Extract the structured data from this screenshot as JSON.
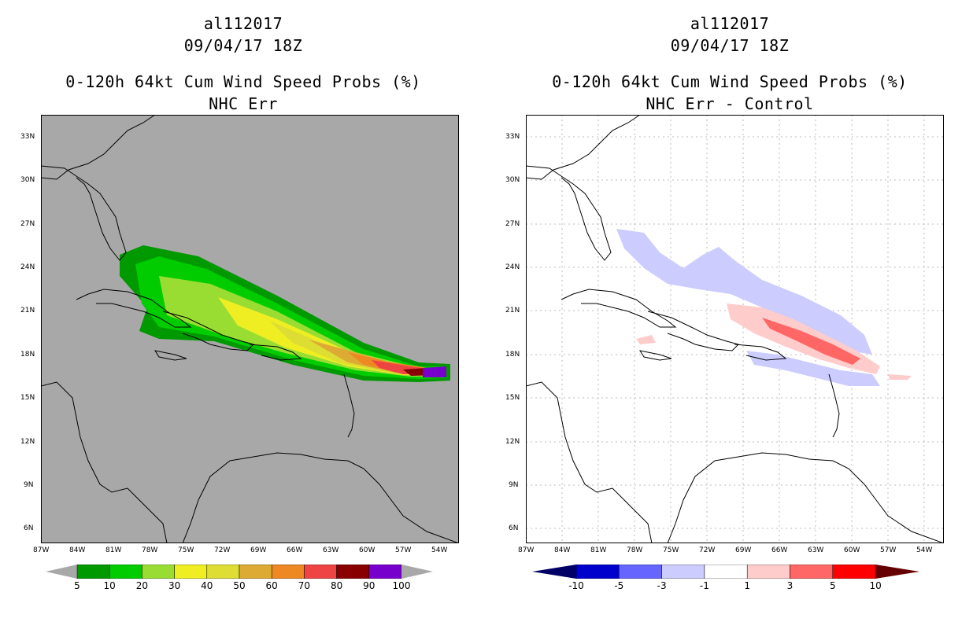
{
  "panels": [
    {
      "id": "left",
      "title_storm": "al112017",
      "title_date": "09/04/17 18Z",
      "title_product": "0-120h 64kt Cum Wind Speed Probs (%)",
      "title_sub": "NHC Err",
      "colorbar_labels": [
        "5",
        "10",
        "20",
        "30",
        "40",
        "50",
        "60",
        "70",
        "80",
        "90",
        "100"
      ],
      "colorbar_colors": [
        "#009900",
        "#00cc00",
        "#99dd33",
        "#eeee22",
        "#dddd33",
        "#ddaa33",
        "#ee8822",
        "#ee4444",
        "#880000",
        "#7700cc"
      ]
    },
    {
      "id": "right",
      "title_storm": "al112017",
      "title_date": "09/04/17 18Z",
      "title_product": "0-120h 64kt Cum Wind Speed Probs (%)",
      "title_sub": "NHC Err - Control",
      "colorbar_labels": [
        "-10",
        "-5",
        "-3",
        "-1",
        "1",
        "3",
        "5",
        "10"
      ],
      "colorbar_colors": [
        "#0000cc",
        "#6666ff",
        "#ccccff",
        "#ffffff",
        "#ffcccc",
        "#ff6666",
        "#ff0000"
      ]
    }
  ],
  "lat_labels": [
    "33N",
    "30N",
    "27N",
    "24N",
    "21N",
    "18N",
    "15N",
    "12N",
    "9N",
    "6N"
  ],
  "lon_labels": [
    "87W",
    "84W",
    "81W",
    "78W",
    "75W",
    "72W",
    "69W",
    "66W",
    "63W",
    "60W",
    "57W",
    "54W"
  ],
  "colors": {
    "map_gray": "#a8a8a8",
    "coast": "#000000",
    "grid_dots": "#bbbbbb"
  }
}
